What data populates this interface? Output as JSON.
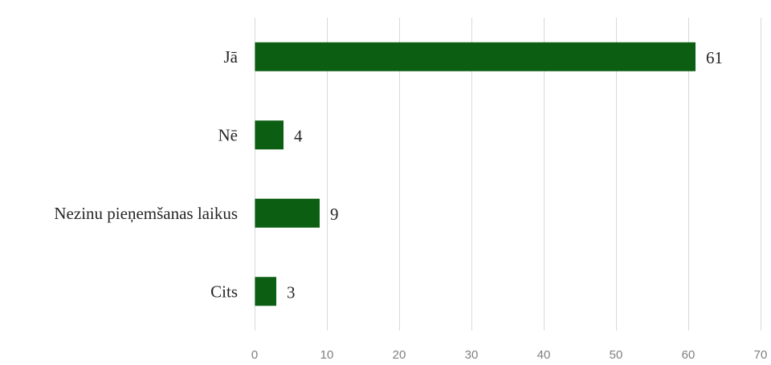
{
  "chart_data": {
    "type": "bar",
    "orientation": "horizontal",
    "categories": [
      "Jā",
      "Nē",
      "Nezinu pieņemšanas laikus",
      "Cits"
    ],
    "values": [
      61,
      4,
      9,
      3
    ],
    "title": "",
    "xlabel": "",
    "ylabel": "",
    "xlim": [
      0,
      70
    ],
    "x_ticks": [
      0,
      10,
      20,
      30,
      40,
      50,
      60,
      70
    ],
    "grid": "vertical",
    "legend": "none",
    "data_labels": true,
    "colors": {
      "bar": "#0b5e12",
      "grid": "#d9d9d9",
      "category_text": "#262626",
      "tick_text": "#7f7f7f"
    }
  }
}
